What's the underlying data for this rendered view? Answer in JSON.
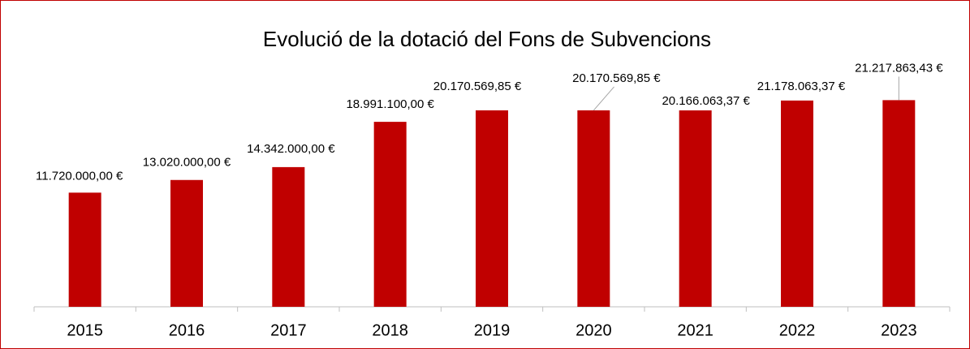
{
  "chart_data": {
    "type": "bar",
    "title": "Evolució de la dotació del Fons de Subvencions",
    "categories": [
      "2015",
      "2016",
      "2017",
      "2018",
      "2019",
      "2020",
      "2021",
      "2022",
      "2023"
    ],
    "values": [
      11720000,
      13020000,
      14342000,
      18991100,
      20170569.85,
      20170569.85,
      20166063.37,
      21178063.37,
      21217863.43
    ],
    "value_labels": [
      "11.720.000,00 €",
      "13.020.000,00 €",
      "14.342.000,00 €",
      "18.991.100,00 €",
      "20.170.569,85 €",
      "20.170.569,85 €",
      "20.166.063,37 €",
      "21.178.063,37 €",
      "21.217.863,43 €"
    ],
    "color": "#c00000",
    "ylim": [
      0,
      25000000
    ]
  }
}
